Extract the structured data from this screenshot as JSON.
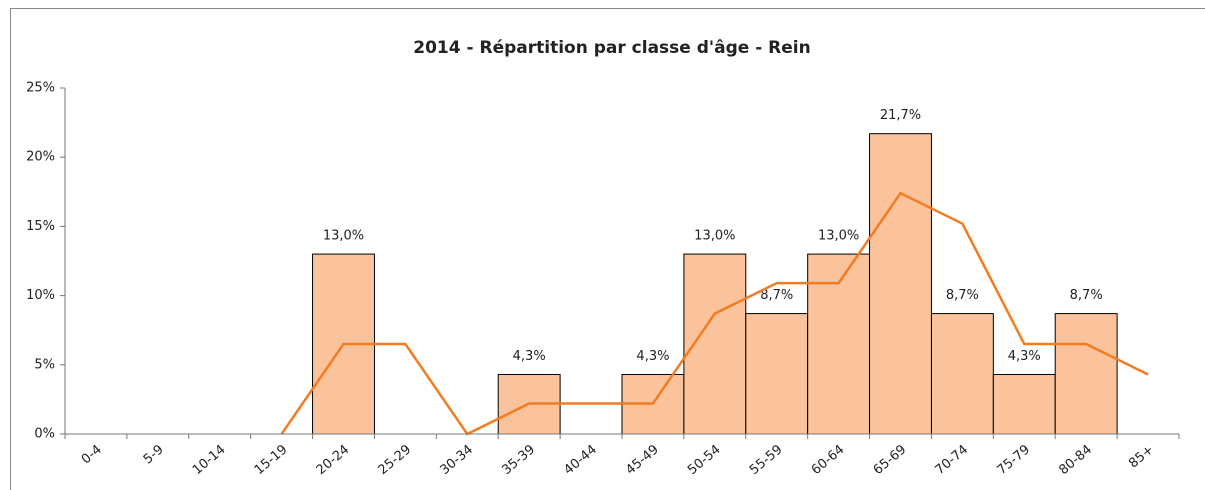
{
  "chart_data": {
    "type": "bar_line",
    "title": "2014 - Répartition par classe d'âge - Rein",
    "categories": [
      "0-4",
      "5-9",
      "10-14",
      "15-19",
      "20-24",
      "25-29",
      "30-34",
      "35-39",
      "40-44",
      "45-49",
      "50-54",
      "55-59",
      "60-64",
      "65-69",
      "70-74",
      "75-79",
      "80-84",
      "85+"
    ],
    "series": [
      {
        "type": "bar",
        "color": "#fbc39b",
        "values": [
          null,
          null,
          null,
          null,
          13.0,
          null,
          null,
          4.3,
          null,
          4.3,
          13.0,
          8.7,
          13.0,
          21.7,
          8.7,
          4.3,
          8.7,
          null
        ],
        "value_labels": [
          null,
          null,
          null,
          null,
          "13,0%",
          null,
          null,
          "4,3%",
          null,
          "4,3%",
          "13,0%",
          "8,7%",
          "13,0%",
          "21,7%",
          "8,7%",
          "4,3%",
          "8,7%",
          null
        ]
      },
      {
        "type": "line",
        "color": "#f47b20",
        "values": [
          null,
          null,
          null,
          0,
          6.5,
          6.5,
          0,
          2.2,
          2.2,
          2.2,
          8.7,
          10.9,
          10.9,
          17.4,
          15.2,
          6.5,
          6.5,
          4.3
        ]
      }
    ],
    "ylim": [
      0,
      25
    ],
    "yticks": [
      {
        "value": 0,
        "label": "0%"
      },
      {
        "value": 5,
        "label": "5%"
      },
      {
        "value": 10,
        "label": "10%"
      },
      {
        "value": 15,
        "label": "15%"
      },
      {
        "value": 20,
        "label": "20%"
      },
      {
        "value": 25,
        "label": "25%"
      }
    ],
    "grid": false
  }
}
